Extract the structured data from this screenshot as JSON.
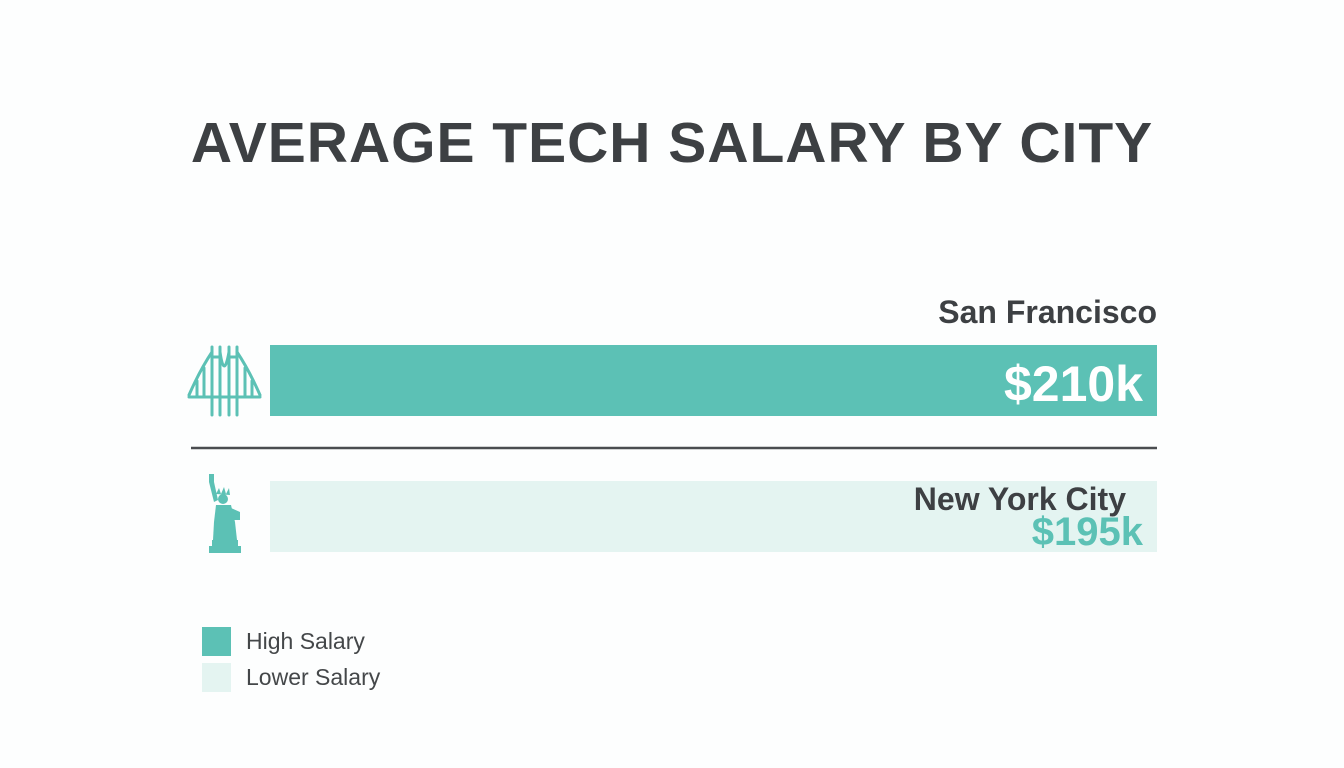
{
  "colors": {
    "high": "#5cc1b5",
    "low": "#e4f4f1",
    "text": "#3d4043",
    "divider": "#4a4d50",
    "white": "#ffffff",
    "icon": "#5cc1b5"
  },
  "chart_data": {
    "type": "bar",
    "orientation": "horizontal",
    "title": "AVERAGE TECH SALARY BY CITY",
    "categories": [
      "San Francisco",
      "New York City"
    ],
    "values": [
      210,
      195
    ],
    "value_labels": [
      "$210k",
      "$195k"
    ],
    "icons": [
      "golden-gate-bridge-icon",
      "statue-of-liberty-icon"
    ],
    "bar_colors": [
      "high",
      "low"
    ],
    "legend": [
      {
        "label": "High Salary",
        "color": "high"
      },
      {
        "label": "Lower Salary",
        "color": "low"
      }
    ],
    "legend_position": "bottom-left",
    "grid": false
  }
}
